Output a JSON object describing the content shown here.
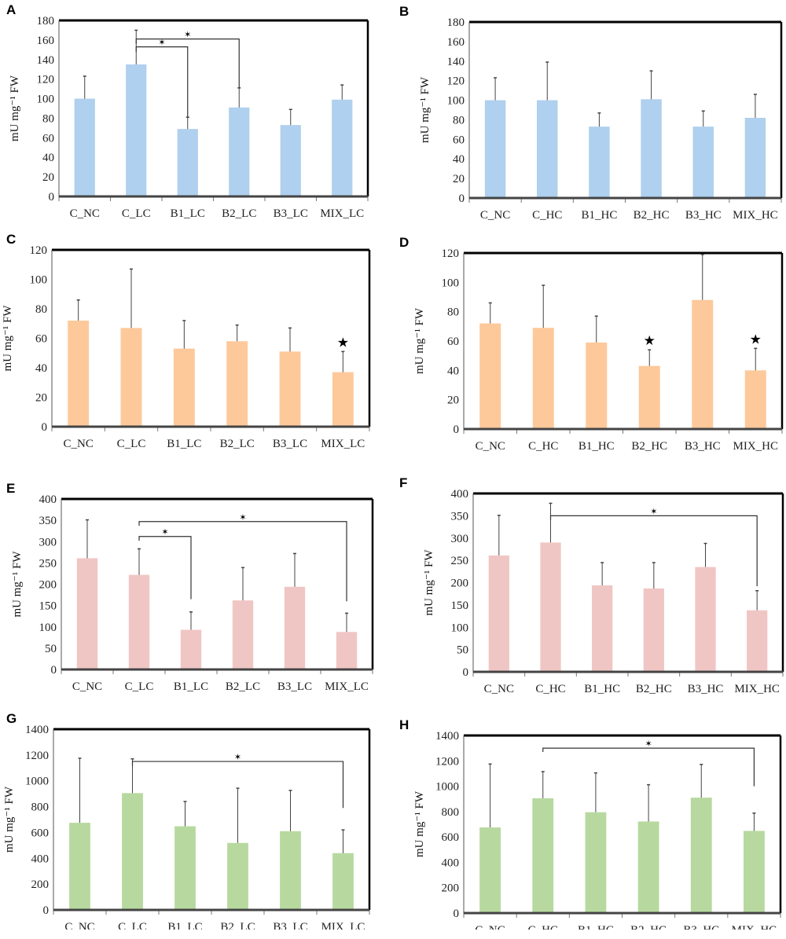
{
  "y_axis_label": "mU mg⁻¹ FW",
  "colors": {
    "blue": "#afd0ee",
    "orange": "#fdc99b",
    "pink": "#f0c6c4",
    "green": "#b7d99f"
  },
  "chart_data": [
    {
      "panel": "A",
      "type": "bar",
      "color": "blue",
      "ylim": [
        0,
        180
      ],
      "yticks": [
        0,
        20,
        40,
        60,
        80,
        100,
        120,
        140,
        160,
        180
      ],
      "categories": [
        "C_NC",
        "C_LC",
        "B1_LC",
        "B2_LC",
        "B3_LC",
        "MIX_LC"
      ],
      "values": [
        100,
        135,
        69,
        91,
        73,
        99
      ],
      "errors": [
        23,
        35,
        12,
        20,
        16,
        15
      ],
      "brackets": [
        {
          "from": 1,
          "to": 2,
          "y": 153,
          "left_end": 148,
          "right_end": 81
        },
        {
          "from": 1,
          "to": 3,
          "y": 161,
          "left_end": 156,
          "right_end": 111
        }
      ],
      "stars": []
    },
    {
      "panel": "B",
      "type": "bar",
      "color": "blue",
      "ylim": [
        0,
        180
      ],
      "yticks": [
        0,
        20,
        40,
        60,
        80,
        100,
        120,
        140,
        160,
        180
      ],
      "categories": [
        "C_NC",
        "C_HC",
        "B1_HC",
        "B2_HC",
        "B3_HC",
        "MIX_HC"
      ],
      "values": [
        100,
        100,
        73,
        101,
        73,
        82
      ],
      "errors": [
        23,
        39,
        14,
        29,
        16,
        24
      ],
      "brackets": [],
      "stars": []
    },
    {
      "panel": "C",
      "type": "bar",
      "color": "orange",
      "ylim": [
        0,
        120
      ],
      "yticks": [
        0,
        20,
        40,
        60,
        80,
        100,
        120
      ],
      "categories": [
        "C_NC",
        "C_LC",
        "B1_LC",
        "B2_LC",
        "B3_LC",
        "MIX_LC"
      ],
      "values": [
        72,
        67,
        53,
        58,
        51,
        37
      ],
      "errors": [
        14,
        40,
        19,
        11,
        16,
        14
      ],
      "brackets": [],
      "stars": [
        5
      ]
    },
    {
      "panel": "D",
      "type": "bar",
      "color": "orange",
      "ylim": [
        0,
        120
      ],
      "yticks": [
        0,
        20,
        40,
        60,
        80,
        100,
        120
      ],
      "categories": [
        "C_NC",
        "C_HC",
        "B1_HC",
        "B2_HC",
        "B3_HC",
        "MIX_HC"
      ],
      "values": [
        72,
        69,
        59,
        43,
        88,
        40
      ],
      "errors": [
        14,
        29,
        18,
        11,
        31,
        15
      ],
      "brackets": [],
      "stars": [
        3,
        5
      ]
    },
    {
      "panel": "E",
      "type": "bar",
      "color": "pink",
      "ylim": [
        0,
        400
      ],
      "yticks": [
        0,
        50,
        100,
        150,
        200,
        250,
        300,
        350,
        400
      ],
      "categories": [
        "C_NC",
        "C_LC",
        "B1_LC",
        "B2_LC",
        "B3_LC",
        "MIX_LC"
      ],
      "values": [
        261,
        222,
        93,
        162,
        194,
        88
      ],
      "errors": [
        90,
        61,
        42,
        77,
        78,
        44
      ],
      "brackets": [
        {
          "from": 1,
          "to": 2,
          "y": 312,
          "left_end": 302,
          "right_end": 165
        },
        {
          "from": 1,
          "to": 5,
          "y": 347,
          "left_end": 337,
          "right_end": 160
        }
      ],
      "stars": []
    },
    {
      "panel": "F",
      "type": "bar",
      "color": "pink",
      "ylim": [
        0,
        400
      ],
      "yticks": [
        0,
        50,
        100,
        150,
        200,
        250,
        300,
        350,
        400
      ],
      "categories": [
        "C_NC",
        "C_HC",
        "B1_HC",
        "B2_HC",
        "B3_HC",
        "MIX_HC"
      ],
      "values": [
        261,
        290,
        194,
        187,
        235,
        138
      ],
      "errors": [
        90,
        88,
        51,
        58,
        53,
        44
      ],
      "brackets": [
        {
          "from": 1,
          "to": 5,
          "y": 350,
          "left_end": 340,
          "right_end": 192
        }
      ],
      "stars": []
    },
    {
      "panel": "G",
      "type": "bar",
      "color": "green",
      "ylim": [
        0,
        1400
      ],
      "yticks": [
        0,
        200,
        400,
        600,
        800,
        1000,
        1200,
        1400
      ],
      "categories": [
        "C_NC",
        "C_LC",
        "B1_LC",
        "B2_LC",
        "B3_LC",
        "MIX_LC"
      ],
      "values": [
        675,
        905,
        648,
        519,
        610,
        440
      ],
      "errors": [
        500,
        265,
        192,
        424,
        316,
        180
      ],
      "brackets": [
        {
          "from": 1,
          "to": 5,
          "y": 1150,
          "left_end": 1115,
          "right_end": 790
        }
      ],
      "stars": []
    },
    {
      "panel": "H",
      "type": "bar",
      "color": "green",
      "ylim": [
        0,
        1400
      ],
      "yticks": [
        0,
        200,
        400,
        600,
        800,
        1000,
        1200,
        1400
      ],
      "categories": [
        "C_NC",
        "C_HC",
        "B1_HC",
        "B2_HC",
        "B3_HC",
        "MIX_HC"
      ],
      "values": [
        675,
        905,
        795,
        722,
        910,
        648
      ],
      "errors": [
        500,
        210,
        310,
        290,
        262,
        140
      ],
      "brackets": [
        {
          "from": 1,
          "to": 5,
          "y": 1300,
          "left_end": 1270,
          "right_end": 1000
        }
      ],
      "stars": []
    }
  ]
}
